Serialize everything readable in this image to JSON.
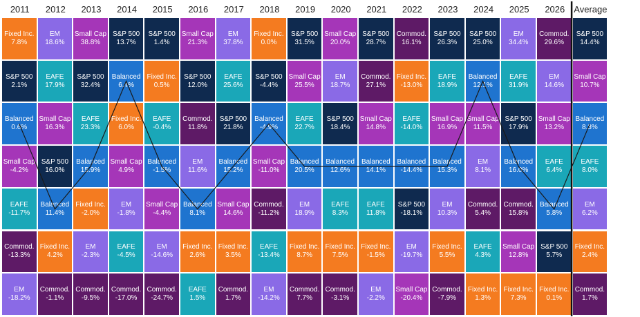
{
  "chart_data": {
    "type": "table",
    "years": [
      "2011",
      "2012",
      "2013",
      "2014",
      "2015",
      "2016",
      "2017",
      "2018",
      "2019",
      "2020",
      "2021",
      "2022",
      "2023",
      "2024",
      "2025",
      "2026",
      "Average"
    ],
    "colors": {
      "Fixed Inc.": "#f47b20",
      "EM": "#8a6ae6",
      "Small Cap": "#a536b8",
      "S&P 500": "#0f2a4f",
      "Commod.": "#5e1a66",
      "EAFE": "#1aa7b8",
      "Balanced": "#1f74cf"
    },
    "highlight_series": "Balanced",
    "columns": [
      [
        [
          "Fixed Inc.",
          "7.8%"
        ],
        [
          "S&P 500",
          "2.1%"
        ],
        [
          "Balanced",
          "0.6%"
        ],
        [
          "Small Cap",
          "-4.2%"
        ],
        [
          "EAFE",
          "-11.7%"
        ],
        [
          "Commod.",
          "-13.3%"
        ],
        [
          "EM",
          "-18.2%"
        ]
      ],
      [
        [
          "EM",
          "18.6%"
        ],
        [
          "EAFE",
          "17.9%"
        ],
        [
          "Small Cap",
          "16.3%"
        ],
        [
          "S&P 500",
          "16.0%"
        ],
        [
          "Balanced",
          "11.4%"
        ],
        [
          "Fixed Inc.",
          "4.2%"
        ],
        [
          "Commod.",
          "-1.1%"
        ]
      ],
      [
        [
          "Small Cap",
          "38.8%"
        ],
        [
          "S&P 500",
          "32.4%"
        ],
        [
          "EAFE",
          "23.3%"
        ],
        [
          "Balanced",
          "15.9%"
        ],
        [
          "Fixed Inc.",
          "-2.0%"
        ],
        [
          "EM",
          "-2.3%"
        ],
        [
          "Commod.",
          "-9.5%"
        ]
      ],
      [
        [
          "S&P 500",
          "13.7%"
        ],
        [
          "Balanced",
          "6.4%"
        ],
        [
          "Fixed Inc.",
          "6.0%"
        ],
        [
          "Small Cap",
          "4.9%"
        ],
        [
          "EM",
          "-1.8%"
        ],
        [
          "EAFE",
          "-4.5%"
        ],
        [
          "Commod.",
          "-17.0%"
        ]
      ],
      [
        [
          "S&P 500",
          "1.4%"
        ],
        [
          "Fixed Inc.",
          "0.5%"
        ],
        [
          "EAFE",
          "-0.4%"
        ],
        [
          "Balanced",
          "-1.5%"
        ],
        [
          "Small Cap",
          "-4.4%"
        ],
        [
          "EM",
          "-14.6%"
        ],
        [
          "Commod.",
          "-24.7%"
        ]
      ],
      [
        [
          "Small Cap",
          "21.3%"
        ],
        [
          "S&P 500",
          "12.0%"
        ],
        [
          "Commod.",
          "11.8%"
        ],
        [
          "EM",
          "11.6%"
        ],
        [
          "Balanced",
          "8.1%"
        ],
        [
          "Fixed Inc.",
          "2.6%"
        ],
        [
          "EAFE",
          "1.5%"
        ]
      ],
      [
        [
          "EM",
          "37.8%"
        ],
        [
          "EAFE",
          "25.6%"
        ],
        [
          "S&P 500",
          "21.8%"
        ],
        [
          "Balanced",
          "15.2%"
        ],
        [
          "Small Cap",
          "14.6%"
        ],
        [
          "Fixed Inc.",
          "3.5%"
        ],
        [
          "Commod.",
          "1.7%"
        ]
      ],
      [
        [
          "Fixed Inc.",
          "0.0%"
        ],
        [
          "S&P 500",
          "-4.4%"
        ],
        [
          "Balanced",
          "-4.9%"
        ],
        [
          "Small Cap",
          "-11.0%"
        ],
        [
          "Commod.",
          "-11.2%"
        ],
        [
          "EAFE",
          "-13.4%"
        ],
        [
          "EM",
          "-14.2%"
        ]
      ],
      [
        [
          "S&P 500",
          "31.5%"
        ],
        [
          "Small Cap",
          "25.5%"
        ],
        [
          "EAFE",
          "22.7%"
        ],
        [
          "Balanced",
          "20.5%"
        ],
        [
          "EM",
          "18.9%"
        ],
        [
          "Fixed Inc.",
          "8.7%"
        ],
        [
          "Commod.",
          "7.7%"
        ]
      ],
      [
        [
          "Small Cap",
          "20.0%"
        ],
        [
          "EM",
          "18.7%"
        ],
        [
          "S&P 500",
          "18.4%"
        ],
        [
          "Balanced",
          "12.6%"
        ],
        [
          "EAFE",
          "8.3%"
        ],
        [
          "Fixed Inc.",
          "7.5%"
        ],
        [
          "Commod.",
          "-3.1%"
        ]
      ],
      [
        [
          "S&P 500",
          "28.7%"
        ],
        [
          "Commod.",
          "27.1%"
        ],
        [
          "Small Cap",
          "14.8%"
        ],
        [
          "Balanced",
          "14.1%"
        ],
        [
          "EAFE",
          "11.8%"
        ],
        [
          "Fixed Inc.",
          "-1.5%"
        ],
        [
          "EM",
          "-2.2%"
        ]
      ],
      [
        [
          "Commod.",
          "16.1%"
        ],
        [
          "Fixed Inc.",
          "-13.0%"
        ],
        [
          "EAFE",
          "-14.0%"
        ],
        [
          "Balanced",
          "-14.4%"
        ],
        [
          "S&P 500",
          "-18.1%"
        ],
        [
          "EM",
          "-19.7%"
        ],
        [
          "Small Cap",
          "-20.4%"
        ]
      ],
      [
        [
          "S&P 500",
          "26.3%"
        ],
        [
          "EAFE",
          "18.9%"
        ],
        [
          "Small Cap",
          "16.9%"
        ],
        [
          "Balanced",
          "15.3%"
        ],
        [
          "EM",
          "10.3%"
        ],
        [
          "Fixed Inc.",
          "5.5%"
        ],
        [
          "Commod.",
          "-7.9%"
        ]
      ],
      [
        [
          "S&P 500",
          "25.0%"
        ],
        [
          "Balanced",
          "12.1%"
        ],
        [
          "Small Cap",
          "11.5%"
        ],
        [
          "EM",
          "8.1%"
        ],
        [
          "Commod.",
          "5.4%"
        ],
        [
          "EAFE",
          "4.3%"
        ],
        [
          "Fixed Inc.",
          "1.3%"
        ]
      ],
      [
        [
          "EM",
          "34.4%"
        ],
        [
          "EAFE",
          "31.9%"
        ],
        [
          "S&P 500",
          "17.9%"
        ],
        [
          "Balanced",
          "16.0%"
        ],
        [
          "Commod.",
          "15.8%"
        ],
        [
          "Small Cap",
          "12.8%"
        ],
        [
          "Fixed Inc.",
          "7.3%"
        ]
      ],
      [
        [
          "Commod.",
          "29.6%"
        ],
        [
          "EM",
          "14.6%"
        ],
        [
          "Small Cap",
          "13.2%"
        ],
        [
          "EAFE",
          "6.4%"
        ],
        [
          "Balanced",
          "5.8%"
        ],
        [
          "S&P 500",
          "5.7%"
        ],
        [
          "Fixed Inc.",
          "0.1%"
        ]
      ],
      [
        [
          "S&P 500",
          "14.4%"
        ],
        [
          "Small Cap",
          "10.7%"
        ],
        [
          "Balanced",
          "8.3%"
        ],
        [
          "EAFE",
          "8.0%"
        ],
        [
          "EM",
          "6.2%"
        ],
        [
          "Fixed Inc.",
          "2.4%"
        ],
        [
          "Commod.",
          "1.7%"
        ]
      ]
    ]
  }
}
